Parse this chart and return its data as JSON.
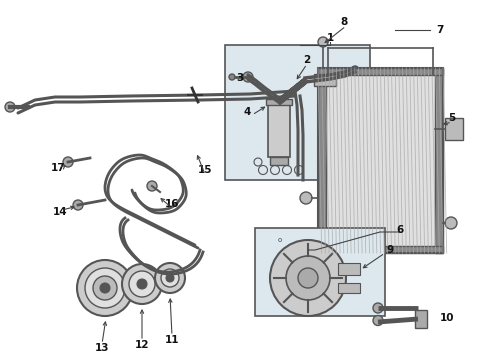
{
  "bg_color": "#ffffff",
  "part_color": "#555555",
  "line_color": "#444444",
  "box_bg": "#dde8ee",
  "box_border": "#555555",
  "label_color": "#111111",
  "label_fontsize": 7.5
}
